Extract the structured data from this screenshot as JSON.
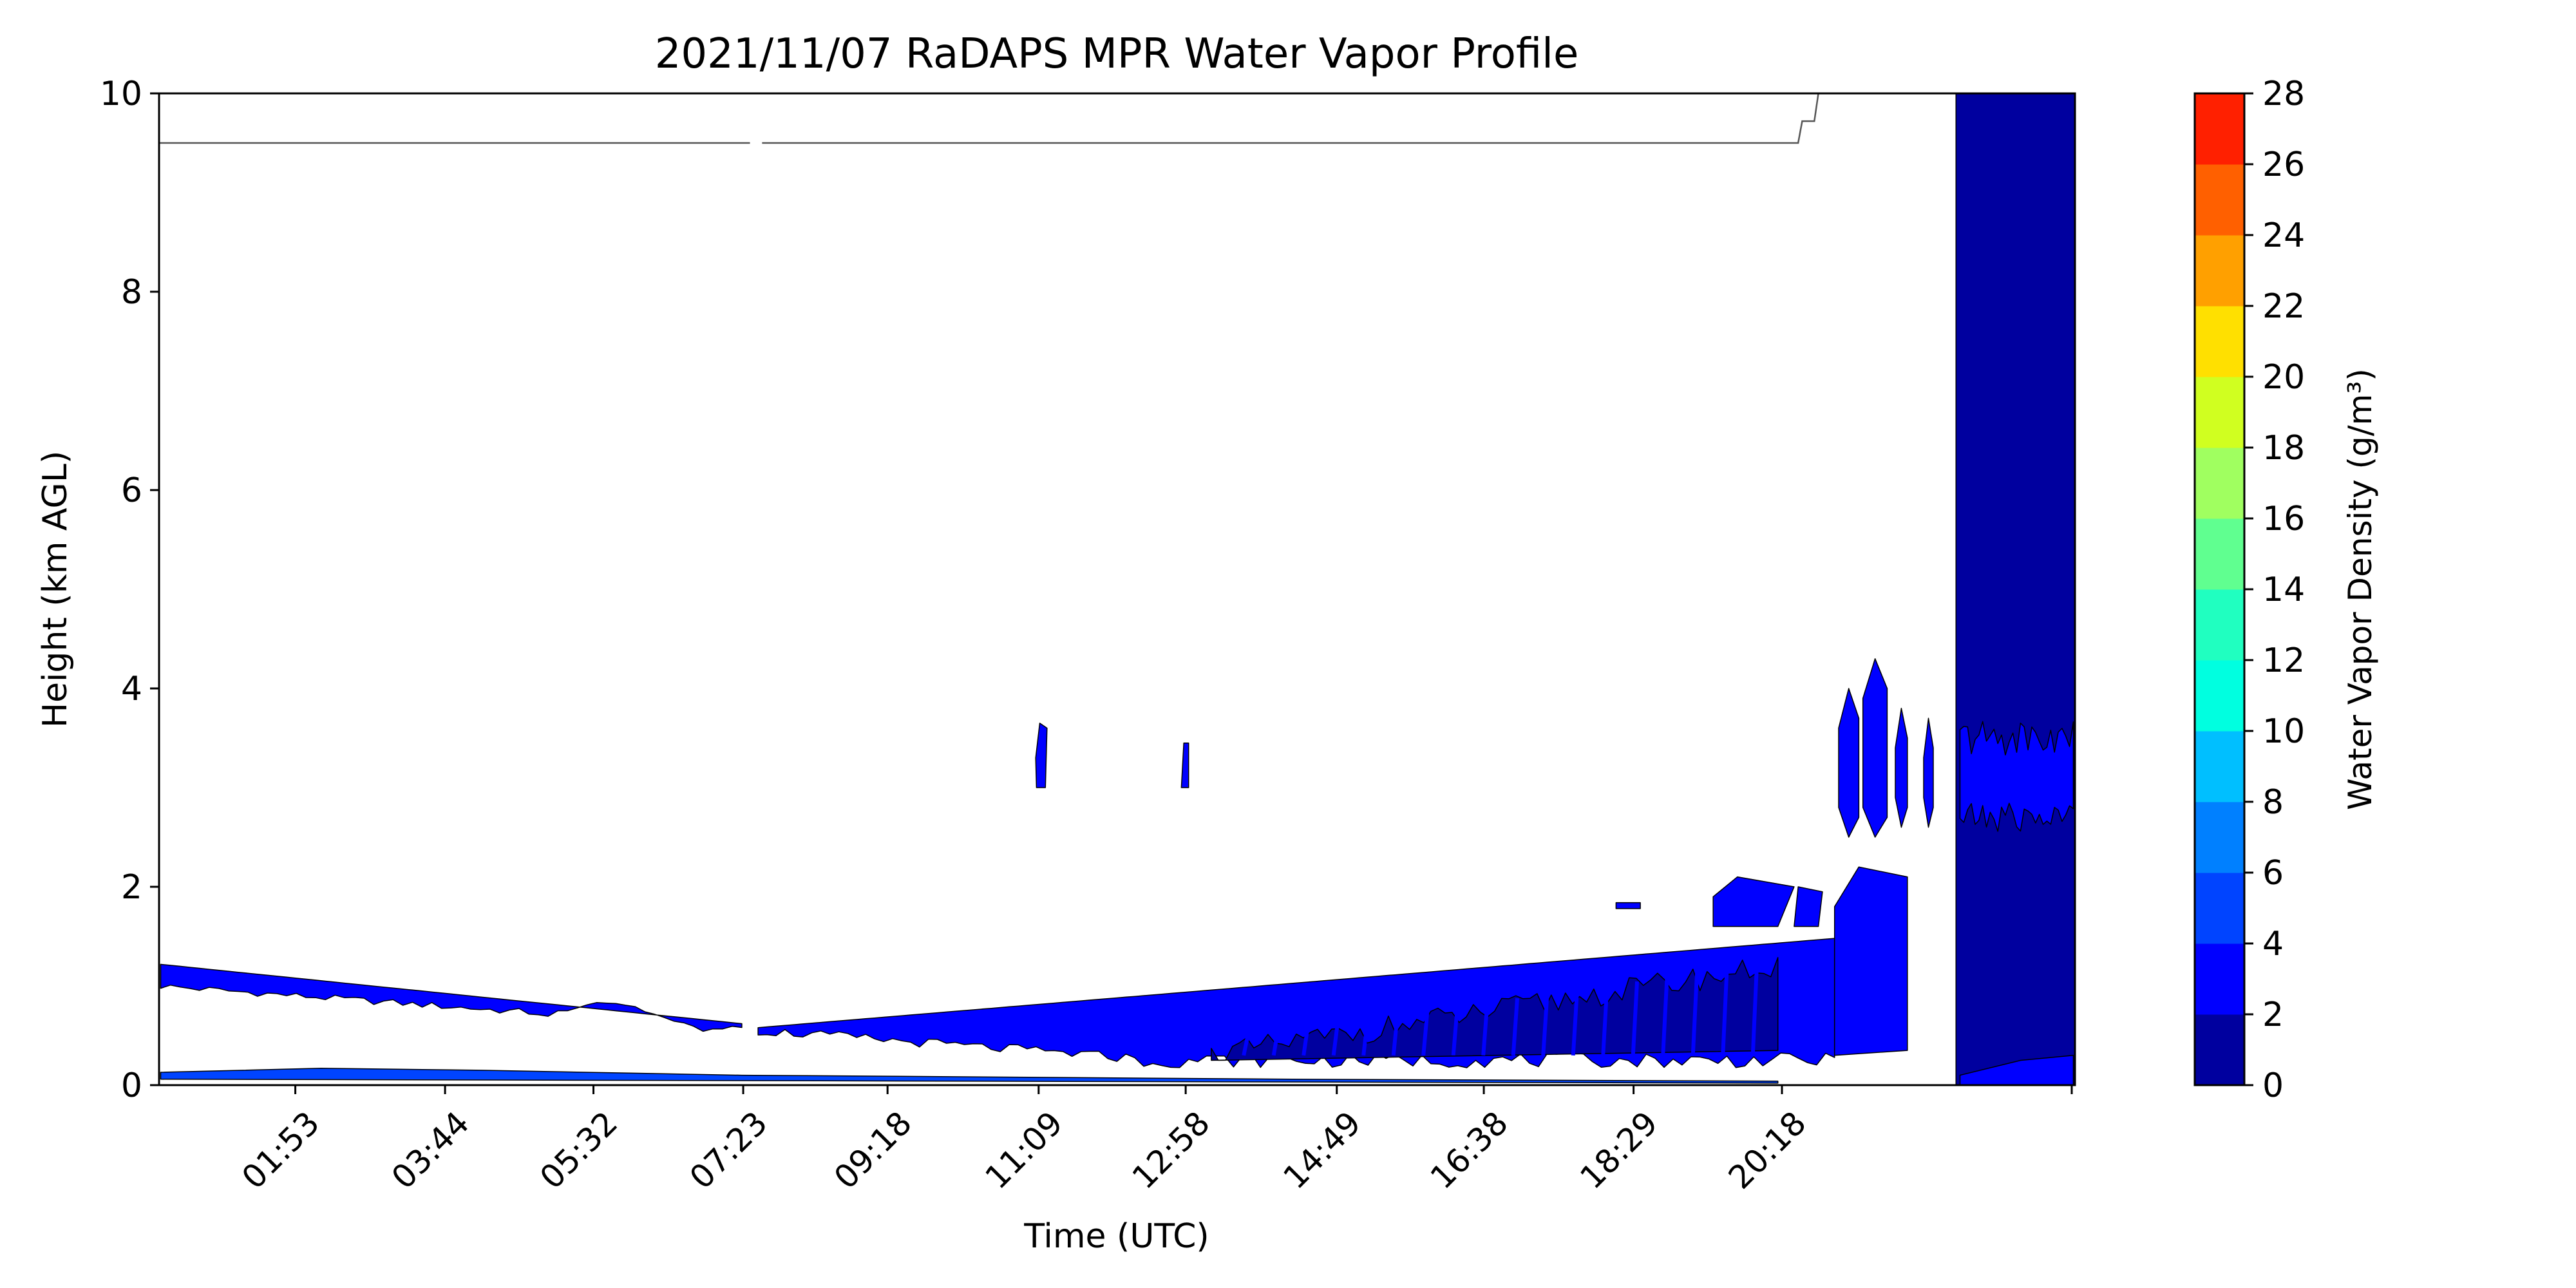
{
  "chart_data": {
    "type": "heatmap",
    "title": "2021/11/07 RaDAPS MPR Water Vapor Profile",
    "xlabel": "Time (UTC)",
    "ylabel": "Height (km AGL)",
    "xlim_hours": [
      0.0,
      23.67
    ],
    "ylim": [
      0,
      10
    ],
    "xticks": [
      "01:53",
      "03:44",
      "05:32",
      "07:23",
      "09:18",
      "11:09",
      "12:58",
      "14:49",
      "16:38",
      "18:29",
      "20:18"
    ],
    "xtick_hours": [
      1.6833,
      3.5333,
      5.3667,
      7.2167,
      9.0,
      10.8667,
      12.6833,
      14.55,
      16.3667,
      18.2167,
      20.05
    ],
    "yticks": [
      0,
      2,
      4,
      6,
      8,
      10
    ],
    "grid": false,
    "colorbar": {
      "label": "Water Vapor Density (g/m³)",
      "levels": [
        0,
        2,
        4,
        6,
        8,
        10,
        12,
        14,
        16,
        18,
        20,
        22,
        24,
        26,
        28
      ],
      "colors": [
        "#00009f",
        "#0000ff",
        "#0044ff",
        "#0080ff",
        "#00bfff",
        "#00ffe0",
        "#20ffc0",
        "#60ff90",
        "#a0ff60",
        "#d0ff20",
        "#ffe000",
        "#ffa000",
        "#ff6000",
        "#ff2000",
        "#b00000"
      ]
    },
    "regions": [
      {
        "level": "2-4",
        "hours": [
          0.0,
          7.2
        ],
        "height_km": [
          0.6,
          1.2
        ],
        "note": "upper wedge"
      },
      {
        "level": "2-4",
        "hours": [
          7.4,
          20.7
        ],
        "height_km": [
          0.15,
          1.45
        ]
      },
      {
        "level": "0-2",
        "hours": [
          13.0,
          20.0
        ],
        "height_km": [
          0.2,
          1.2
        ]
      },
      {
        "level": "2-4",
        "hours": [
          20.7,
          22.0
        ],
        "height_km": [
          0.2,
          4.3
        ]
      },
      {
        "level": "0-2",
        "hours": [
          22.2,
          23.67
        ],
        "height_km": [
          0.0,
          10.0
        ],
        "note": "solid column"
      },
      {
        "level": "2-4",
        "hours": [
          22.2,
          23.67
        ],
        "height_km": [
          2.6,
          3.8
        ]
      },
      {
        "level": "2-4",
        "hours": [
          10.85,
          10.95
        ],
        "height_km": [
          3.0,
          3.6
        ]
      },
      {
        "level": "2-4",
        "hours": [
          12.65,
          12.72
        ],
        "height_km": [
          3.0,
          3.4
        ]
      }
    ]
  }
}
